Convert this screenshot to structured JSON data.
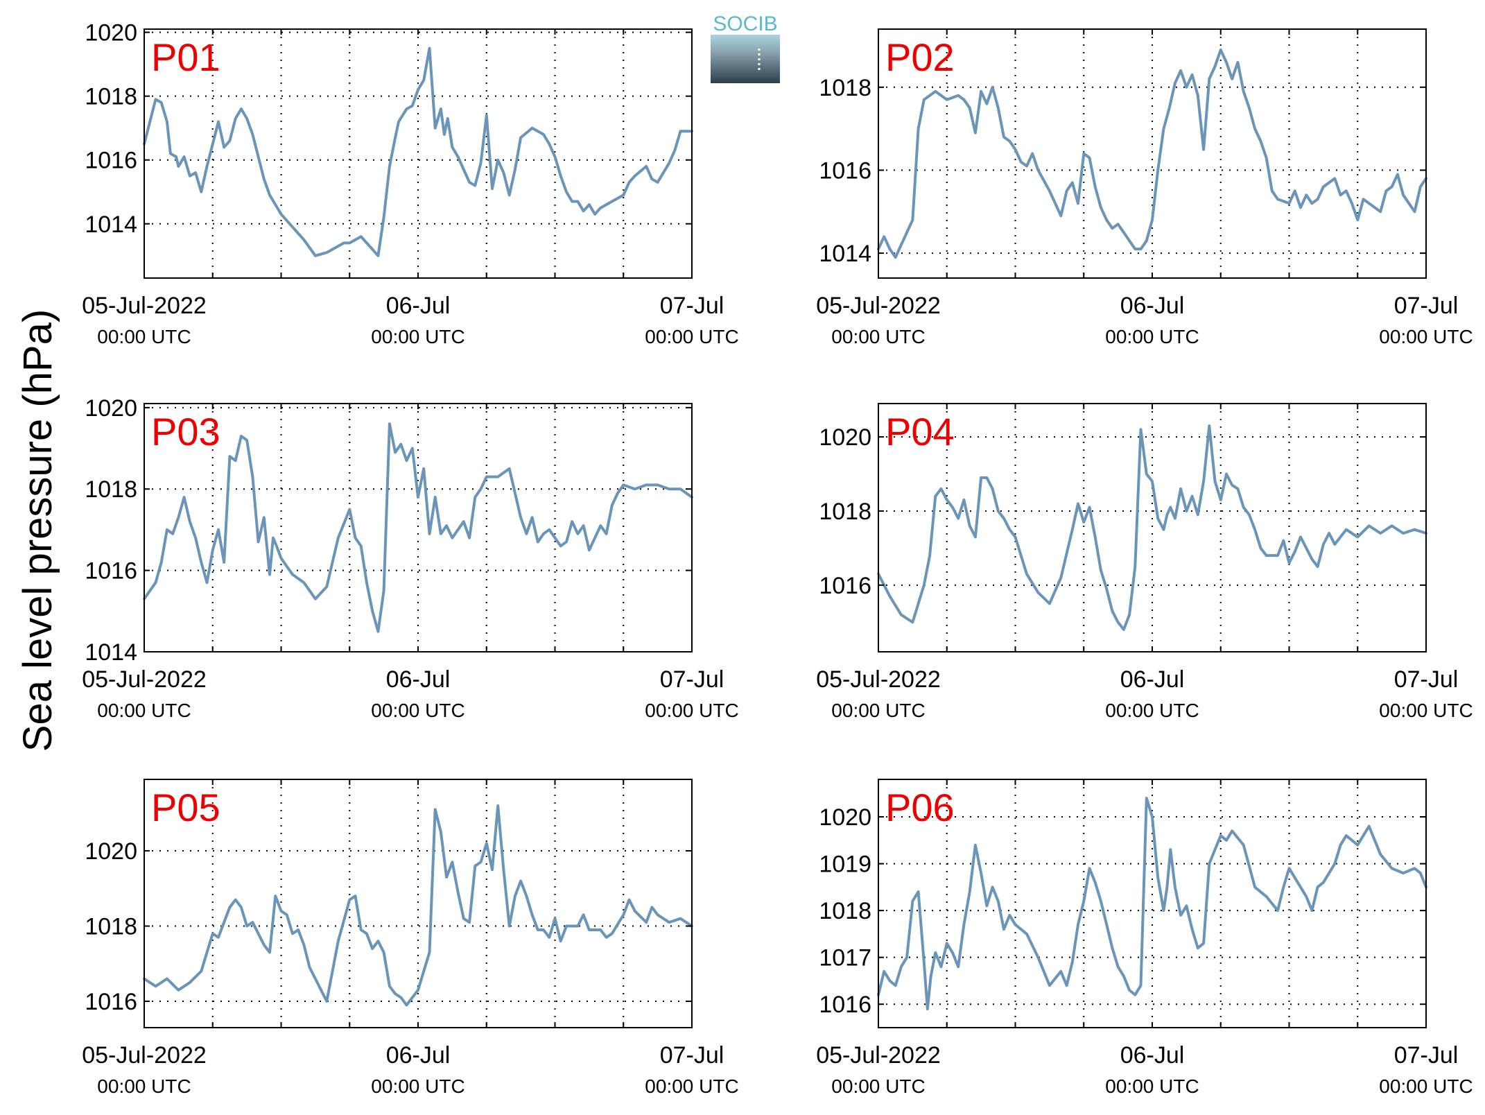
{
  "figure": {
    "ylabel": "Sea level pressure (hPa)",
    "logo_text": "SOCIB",
    "colors": {
      "line": "#6a94b8",
      "panel_label": "#ee0000",
      "axis": "#000000"
    }
  },
  "chart_data": [
    {
      "type": "line",
      "label": "P01",
      "xlim": [
        0,
        48
      ],
      "ylim": [
        1012.3,
        1020.1
      ],
      "yticks": [
        1014,
        1016,
        1018,
        1020
      ],
      "xticks": [
        0,
        6,
        12,
        18,
        24,
        30,
        36,
        42,
        48
      ],
      "xticklabels": [
        {
          "x": 0,
          "main": "05-Jul-2022",
          "sub": "00:00 UTC"
        },
        {
          "x": 24,
          "main": "06-Jul",
          "sub": "00:00 UTC"
        },
        {
          "x": 48,
          "main": "07-Jul",
          "sub": "00:00 UTC"
        }
      ],
      "grid": true,
      "x": [
        0,
        1,
        1.5,
        2,
        2.3,
        2.8,
        3,
        3.5,
        4,
        4.5,
        5,
        5.5,
        6,
        6.5,
        7,
        7.5,
        8,
        8.5,
        9,
        9.5,
        10,
        10.5,
        11,
        11.5,
        12,
        13,
        14,
        15,
        16,
        17,
        17.5,
        18,
        19,
        20,
        20.5,
        21,
        21.5,
        22,
        22.3,
        23,
        23.5,
        24,
        24.5,
        25,
        25.5,
        26,
        26.3,
        26.6,
        27,
        27.5,
        28,
        28.5,
        29,
        29.5,
        30,
        30.5,
        31,
        31.5,
        32,
        32.5,
        33,
        34,
        35,
        35.5,
        36,
        36.5,
        37,
        37.5,
        38,
        38.5,
        39,
        39.5,
        40,
        40.5,
        41,
        42,
        42.5,
        43,
        44,
        44.5,
        45,
        46,
        46.5,
        47,
        48
      ],
      "values": [
        1016.5,
        1017.9,
        1017.8,
        1017.2,
        1016.2,
        1016.1,
        1015.8,
        1016.1,
        1015.5,
        1015.6,
        1015,
        1015.8,
        1016.5,
        1017.2,
        1016.4,
        1016.6,
        1017.3,
        1017.6,
        1017.3,
        1016.8,
        1016.1,
        1015.4,
        1014.9,
        1014.6,
        1014.3,
        1013.9,
        1013.5,
        1013,
        1013.1,
        1013.3,
        1013.4,
        1013.4,
        1013.6,
        1013.2,
        1013,
        1014.2,
        1015.8,
        1016.7,
        1017.2,
        1017.6,
        1017.7,
        1018.2,
        1018.5,
        1019.5,
        1017,
        1017.6,
        1016.8,
        1017.3,
        1016.4,
        1016.1,
        1015.7,
        1015.3,
        1015.2,
        1015.9,
        1017.4,
        1015.1,
        1016,
        1015.6,
        1014.9,
        1015.7,
        1016.7,
        1017,
        1016.8,
        1016.5,
        1016.1,
        1015.5,
        1015,
        1014.7,
        1014.7,
        1014.4,
        1014.6,
        1014.3,
        1014.5,
        1014.6,
        1014.7,
        1014.9,
        1015.3,
        1015.5,
        1015.8,
        1015.4,
        1015.3,
        1015.9,
        1016.3,
        1016.9,
        1016.9
      ]
    },
    {
      "type": "line",
      "label": "P02",
      "xlim": [
        0,
        48
      ],
      "ylim": [
        1013.4,
        1019.4
      ],
      "yticks": [
        1014,
        1016,
        1018
      ],
      "xticks": [
        0,
        6,
        12,
        18,
        24,
        30,
        36,
        42,
        48
      ],
      "xticklabels": [
        {
          "x": 0,
          "main": "05-Jul-2022",
          "sub": "00:00 UTC"
        },
        {
          "x": 24,
          "main": "06-Jul",
          "sub": "00:00 UTC"
        },
        {
          "x": 48,
          "main": "07-Jul",
          "sub": "00:00 UTC"
        }
      ],
      "grid": true,
      "x": [
        0,
        0.5,
        1,
        1.5,
        2,
        2.5,
        3,
        3.5,
        4,
        4.5,
        5,
        6,
        7,
        7.5,
        8,
        8.5,
        9,
        9.5,
        10,
        10.5,
        11,
        11.5,
        12,
        12.5,
        13,
        13.5,
        14,
        15,
        16,
        16.5,
        17,
        17.5,
        18,
        18.5,
        19,
        19.5,
        20,
        20.5,
        21,
        21.5,
        22,
        22.5,
        23,
        23.5,
        24,
        24.5,
        25,
        25.5,
        26,
        26.5,
        27,
        27.5,
        28,
        28.5,
        29,
        29.5,
        30,
        30.5,
        31,
        31.5,
        32,
        32.5,
        33,
        33.5,
        34,
        34.5,
        35,
        36,
        36.5,
        37,
        37.5,
        38,
        38.5,
        39,
        40,
        40.5,
        41,
        41.5,
        42,
        42.5,
        43,
        44,
        44.5,
        45,
        45.5,
        46,
        47,
        47.5,
        48
      ],
      "values": [
        1014.1,
        1014.4,
        1014.1,
        1013.9,
        1014.2,
        1014.5,
        1014.8,
        1017,
        1017.7,
        1017.8,
        1017.9,
        1017.7,
        1017.8,
        1017.7,
        1017.5,
        1016.9,
        1017.9,
        1017.6,
        1018,
        1017.5,
        1016.8,
        1016.7,
        1016.5,
        1016.2,
        1016.1,
        1016.4,
        1016,
        1015.5,
        1014.9,
        1015.5,
        1015.7,
        1015.2,
        1016.4,
        1016.3,
        1015.6,
        1015.1,
        1014.8,
        1014.6,
        1014.7,
        1014.5,
        1014.3,
        1014.1,
        1014.1,
        1014.3,
        1014.8,
        1016,
        1017,
        1017.5,
        1018.1,
        1018.4,
        1018,
        1018.3,
        1017.8,
        1016.5,
        1018.2,
        1018.5,
        1018.9,
        1018.6,
        1018.2,
        1018.6,
        1017.9,
        1017.5,
        1017,
        1016.7,
        1016.3,
        1015.5,
        1015.3,
        1015.2,
        1015.5,
        1015.1,
        1015.4,
        1015.2,
        1015.3,
        1015.6,
        1015.8,
        1015.4,
        1015.5,
        1015.2,
        1014.8,
        1015.3,
        1015.2,
        1015,
        1015.5,
        1015.6,
        1015.9,
        1015.4,
        1015,
        1015.6,
        1015.8
      ]
    },
    {
      "type": "line",
      "label": "P03",
      "xlim": [
        0,
        48
      ],
      "ylim": [
        1014,
        1020.1
      ],
      "yticks": [
        1014,
        1016,
        1018,
        1020
      ],
      "xticks": [
        0,
        6,
        12,
        18,
        24,
        30,
        36,
        42,
        48
      ],
      "xticklabels": [
        {
          "x": 0,
          "main": "05-Jul-2022",
          "sub": "00:00 UTC"
        },
        {
          "x": 24,
          "main": "06-Jul",
          "sub": "00:00 UTC"
        },
        {
          "x": 48,
          "main": "07-Jul",
          "sub": "00:00 UTC"
        }
      ],
      "grid": true,
      "x": [
        0,
        0.5,
        1,
        1.5,
        2,
        2.5,
        3,
        3.5,
        4,
        4.5,
        5,
        5.5,
        6,
        6.5,
        7,
        7.5,
        8,
        8.5,
        9,
        9.5,
        10,
        10.5,
        11,
        11.3,
        11.6,
        12,
        12.5,
        13,
        14,
        15,
        16,
        17,
        18,
        18.5,
        19,
        19.5,
        20,
        20.5,
        21,
        21.5,
        22,
        22.5,
        23,
        23.5,
        24,
        24.5,
        25,
        25.5,
        26,
        26.5,
        27,
        27.5,
        28,
        28.5,
        29,
        29.5,
        30,
        31,
        32,
        33,
        33.5,
        34,
        34.5,
        35,
        35.5,
        36,
        36.5,
        37,
        37.5,
        38,
        38.5,
        39,
        39.5,
        40,
        40.5,
        41,
        41.5,
        42,
        43,
        44,
        45,
        46,
        47,
        48
      ],
      "values": [
        1015.3,
        1015.5,
        1015.7,
        1016.2,
        1017,
        1016.9,
        1017.3,
        1017.8,
        1017.2,
        1016.8,
        1016.2,
        1015.7,
        1016.5,
        1017,
        1016.2,
        1018.8,
        1018.7,
        1019.3,
        1019.2,
        1018.3,
        1016.7,
        1017.3,
        1015.9,
        1016.8,
        1016.6,
        1016.3,
        1016.1,
        1015.9,
        1015.7,
        1015.3,
        1015.6,
        1016.8,
        1017.5,
        1016.8,
        1016.6,
        1015.7,
        1015,
        1014.5,
        1015.5,
        1019.6,
        1018.9,
        1019.1,
        1018.7,
        1019,
        1017.8,
        1018.5,
        1016.9,
        1017.8,
        1016.9,
        1017.1,
        1016.8,
        1017,
        1017.2,
        1016.8,
        1017.8,
        1018,
        1018.3,
        1018.3,
        1018.5,
        1017.3,
        1016.9,
        1017.3,
        1016.7,
        1016.9,
        1017,
        1016.8,
        1016.6,
        1016.7,
        1017.2,
        1016.9,
        1017.1,
        1016.5,
        1016.8,
        1017.1,
        1016.9,
        1017.6,
        1017.9,
        1018.1,
        1018,
        1018.1,
        1018.1,
        1018,
        1018,
        1017.8
      ]
    },
    {
      "type": "line",
      "label": "P04",
      "xlim": [
        0,
        48
      ],
      "ylim": [
        1014.2,
        1020.9
      ],
      "yticks": [
        1016,
        1018,
        1020
      ],
      "xticks": [
        0,
        6,
        12,
        18,
        24,
        30,
        36,
        42,
        48
      ],
      "xticklabels": [
        {
          "x": 0,
          "main": "05-Jul-2022",
          "sub": "00:00 UTC"
        },
        {
          "x": 24,
          "main": "06-Jul",
          "sub": "00:00 UTC"
        },
        {
          "x": 48,
          "main": "07-Jul",
          "sub": "00:00 UTC"
        }
      ],
      "grid": true,
      "x": [
        0,
        1,
        2,
        3,
        3.5,
        4,
        4.5,
        5,
        5.5,
        6,
        6.5,
        7,
        7.5,
        8,
        8.5,
        9,
        9.5,
        10,
        10.5,
        11,
        11.5,
        12,
        12.5,
        13,
        14,
        15,
        16,
        17,
        17.5,
        18,
        18.5,
        19,
        19.5,
        20,
        20.5,
        21,
        21.5,
        22,
        22.5,
        23,
        23.5,
        24,
        24.5,
        25,
        25.3,
        25.6,
        26,
        26.5,
        27,
        27.5,
        28,
        28.5,
        29,
        29.5,
        30,
        30.5,
        31,
        31.5,
        32,
        32.5,
        33,
        33.5,
        34,
        35,
        35.5,
        36,
        36.5,
        37,
        37.5,
        38,
        38.5,
        39,
        39.5,
        40,
        41,
        42,
        43,
        44,
        45,
        46,
        47,
        48
      ],
      "values": [
        1016.3,
        1015.7,
        1015.2,
        1015,
        1015.5,
        1016,
        1016.8,
        1018.4,
        1018.6,
        1018.3,
        1018.1,
        1017.8,
        1018.3,
        1017.6,
        1017.3,
        1018.9,
        1018.9,
        1018.6,
        1018,
        1017.8,
        1017.5,
        1017.3,
        1016.8,
        1016.3,
        1015.8,
        1015.5,
        1016.2,
        1017.5,
        1018.2,
        1017.7,
        1018.1,
        1017.3,
        1016.4,
        1015.9,
        1015.3,
        1015,
        1014.8,
        1015.2,
        1016.5,
        1020.2,
        1019,
        1018.8,
        1017.8,
        1017.5,
        1017.9,
        1018.1,
        1017.8,
        1018.6,
        1018,
        1018.4,
        1017.9,
        1018.8,
        1020.3,
        1018.8,
        1018.3,
        1019,
        1018.7,
        1018.6,
        1018.1,
        1017.9,
        1017.5,
        1017,
        1016.8,
        1016.8,
        1017.2,
        1016.6,
        1016.9,
        1017.3,
        1017,
        1016.7,
        1016.5,
        1017.1,
        1017.4,
        1017.1,
        1017.5,
        1017.3,
        1017.6,
        1017.4,
        1017.6,
        1017.4,
        1017.5,
        1017.4
      ]
    },
    {
      "type": "line",
      "label": "P05",
      "xlim": [
        0,
        48
      ],
      "ylim": [
        1015.3,
        1021.9
      ],
      "yticks": [
        1016,
        1018,
        1020
      ],
      "xticks": [
        0,
        6,
        12,
        18,
        24,
        30,
        36,
        42,
        48
      ],
      "xticklabels": [
        {
          "x": 0,
          "main": "05-Jul-2022",
          "sub": "00:00 UTC"
        },
        {
          "x": 24,
          "main": "06-Jul",
          "sub": "00:00 UTC"
        },
        {
          "x": 48,
          "main": "07-Jul",
          "sub": "00:00 UTC"
        }
      ],
      "grid": true,
      "x": [
        0,
        1,
        2,
        3,
        4,
        5,
        5.5,
        6,
        6.5,
        7,
        7.5,
        8,
        8.5,
        9,
        9.5,
        10,
        10.5,
        11,
        11.5,
        12,
        12.5,
        13,
        13.5,
        14,
        14.5,
        15,
        16,
        17,
        18,
        18.5,
        19,
        19.5,
        20,
        20.5,
        21,
        21.5,
        22,
        22.5,
        23,
        24,
        25,
        25.5,
        26,
        26.5,
        27,
        27.5,
        28,
        28.5,
        29,
        29.5,
        30,
        30.5,
        31,
        31.5,
        32,
        32.5,
        33,
        33.5,
        34,
        34.5,
        35,
        35.5,
        36,
        36.5,
        37,
        38,
        38.5,
        39,
        40,
        40.5,
        41,
        42,
        42.5,
        43,
        44,
        44.5,
        45,
        46,
        47,
        48
      ],
      "values": [
        1016.6,
        1016.4,
        1016.6,
        1016.3,
        1016.5,
        1016.8,
        1017.3,
        1017.8,
        1017.7,
        1018.1,
        1018.5,
        1018.7,
        1018.5,
        1018,
        1018.1,
        1017.8,
        1017.5,
        1017.3,
        1018.8,
        1018.4,
        1018.3,
        1017.8,
        1017.9,
        1017.5,
        1016.9,
        1016.6,
        1016,
        1017.6,
        1018.7,
        1018.8,
        1017.9,
        1017.8,
        1017.4,
        1017.6,
        1017.3,
        1016.4,
        1016.2,
        1016.1,
        1015.9,
        1016.3,
        1017.3,
        1021.1,
        1020.5,
        1019.3,
        1019.7,
        1018.9,
        1018.2,
        1018.1,
        1019.6,
        1019.7,
        1020.2,
        1019.5,
        1021.2,
        1019.5,
        1018,
        1018.8,
        1019.2,
        1018.8,
        1018.3,
        1017.9,
        1017.9,
        1017.7,
        1018.2,
        1017.6,
        1018,
        1018,
        1018.3,
        1017.9,
        1017.9,
        1017.7,
        1017.8,
        1018.3,
        1018.7,
        1018.4,
        1018.1,
        1018.5,
        1018.3,
        1018.1,
        1018.2,
        1018
      ]
    },
    {
      "type": "line",
      "label": "P06",
      "xlim": [
        0,
        48
      ],
      "ylim": [
        1015.5,
        1020.8
      ],
      "yticks": [
        1016,
        1017,
        1018,
        1019,
        1020
      ],
      "xticks": [
        0,
        6,
        12,
        18,
        24,
        30,
        36,
        42,
        48
      ],
      "xticklabels": [
        {
          "x": 0,
          "main": "05-Jul-2022",
          "sub": "00:00 UTC"
        },
        {
          "x": 24,
          "main": "06-Jul",
          "sub": "00:00 UTC"
        },
        {
          "x": 48,
          "main": "07-Jul",
          "sub": "00:00 UTC"
        }
      ],
      "grid": true,
      "x": [
        0,
        0.5,
        1,
        1.5,
        2,
        2.5,
        3,
        3.5,
        4,
        4.3,
        4.6,
        5,
        5.5,
        6,
        6.5,
        7,
        7.5,
        8,
        8.5,
        9,
        9.5,
        10,
        10.5,
        11,
        11.5,
        12,
        13,
        14,
        15,
        16,
        16.5,
        17,
        17.5,
        18,
        18.5,
        19,
        19.5,
        20,
        20.5,
        21,
        21.5,
        22,
        22.5,
        23,
        23.5,
        24,
        24.5,
        25,
        25.3,
        25.6,
        26,
        26.5,
        27,
        27.5,
        28,
        28.5,
        29,
        29.5,
        30,
        30.5,
        31,
        32,
        33,
        34,
        35,
        35.5,
        36,
        37,
        37.5,
        38,
        38.5,
        39,
        40,
        40.5,
        41,
        42,
        43,
        44,
        45,
        46,
        47,
        47.5,
        48
      ],
      "values": [
        1016.2,
        1016.7,
        1016.5,
        1016.4,
        1016.8,
        1017,
        1018.2,
        1018.4,
        1016.9,
        1015.9,
        1016.6,
        1017.1,
        1016.8,
        1017.3,
        1017.1,
        1016.8,
        1017.7,
        1018.4,
        1019.4,
        1018.8,
        1018.1,
        1018.5,
        1018.2,
        1017.6,
        1017.9,
        1017.7,
        1017.5,
        1017,
        1016.4,
        1016.7,
        1016.4,
        1016.9,
        1017.7,
        1018.2,
        1018.9,
        1018.6,
        1018.2,
        1017.7,
        1017.2,
        1016.8,
        1016.6,
        1016.3,
        1016.2,
        1016.4,
        1020.4,
        1020,
        1018.7,
        1018,
        1018.5,
        1019.3,
        1018.5,
        1017.9,
        1018.1,
        1017.6,
        1017.2,
        1017.3,
        1019,
        1019.3,
        1019.6,
        1019.5,
        1019.7,
        1019.4,
        1018.5,
        1018.3,
        1018,
        1018.5,
        1018.9,
        1018.5,
        1018.3,
        1018,
        1018.5,
        1018.6,
        1019,
        1019.4,
        1019.6,
        1019.4,
        1019.8,
        1019.2,
        1018.9,
        1018.8,
        1018.9,
        1018.8,
        1018.5
      ]
    }
  ]
}
